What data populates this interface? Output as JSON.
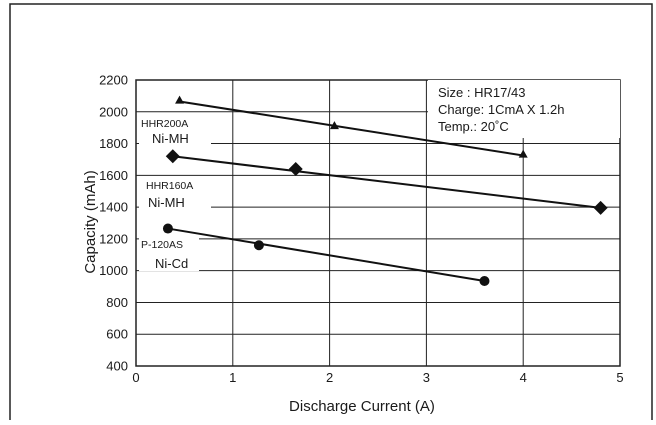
{
  "chart_data": {
    "type": "line",
    "xlabel": "Discharge Current (A)",
    "ylabel": "Capacity (mAh)",
    "xlim": [
      0,
      5
    ],
    "ylim": [
      400,
      2200
    ],
    "xticks": [
      "0",
      "1",
      "2",
      "3",
      "4",
      "5"
    ],
    "yticks": [
      "400",
      "600",
      "800",
      "1000",
      "1200",
      "1400",
      "1600",
      "1800",
      "2000",
      "2200"
    ],
    "grid": true,
    "conditions": [
      "Size : HR17/43",
      "Charge: 1CmA X 1.2h",
      "Temp.: 20˚C"
    ],
    "series": [
      {
        "name": "HHR200A",
        "type_label": "Ni-MH",
        "marker": "triangle",
        "points": [
          [
            0.45,
            2070
          ],
          [
            2.05,
            1910
          ],
          [
            4.0,
            1730
          ]
        ],
        "fit": [
          [
            0.45,
            2065
          ],
          [
            4.0,
            1725
          ]
        ]
      },
      {
        "name": "HHR160A",
        "type_label": "Ni-MH",
        "marker": "diamond",
        "points": [
          [
            0.38,
            1720
          ],
          [
            1.65,
            1640
          ],
          [
            4.8,
            1395
          ]
        ],
        "fit": [
          [
            0.38,
            1720
          ],
          [
            4.8,
            1395
          ]
        ]
      },
      {
        "name": "P-120AS",
        "type_label": "Ni-Cd",
        "marker": "circle",
        "points": [
          [
            0.33,
            1265
          ],
          [
            1.27,
            1160
          ],
          [
            3.6,
            935
          ]
        ],
        "fit": [
          [
            0.33,
            1265
          ],
          [
            3.6,
            935
          ]
        ]
      }
    ]
  }
}
